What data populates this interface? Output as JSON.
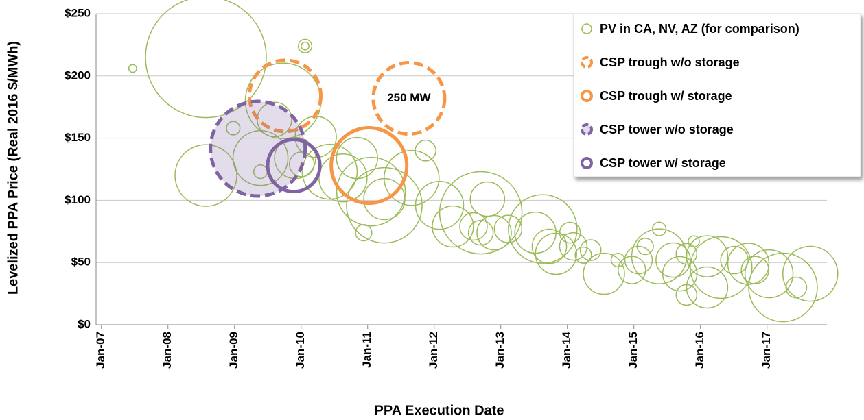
{
  "chart_data": {
    "type": "bubble",
    "xlabel": "PPA Execution Date",
    "ylabel": "Levelized PPA Price (Real 2016 $/MWh)",
    "xlim": [
      2006.92,
      2017.9
    ],
    "ylim": [
      0,
      250
    ],
    "xticks": [
      {
        "value": 2007,
        "label": "Jan-07"
      },
      {
        "value": 2008,
        "label": "Jan-08"
      },
      {
        "value": 2009,
        "label": "Jan-09"
      },
      {
        "value": 2010,
        "label": "Jan-10"
      },
      {
        "value": 2011,
        "label": "Jan-11"
      },
      {
        "value": 2012,
        "label": "Jan-12"
      },
      {
        "value": 2013,
        "label": "Jan-13"
      },
      {
        "value": 2014,
        "label": "Jan-14"
      },
      {
        "value": 2015,
        "label": "Jan-15"
      },
      {
        "value": 2016,
        "label": "Jan-16"
      },
      {
        "value": 2017,
        "label": "Jan-17"
      }
    ],
    "yticks": [
      {
        "value": 0,
        "label": "$0"
      },
      {
        "value": 50,
        "label": "$50"
      },
      {
        "value": 100,
        "label": "$100"
      },
      {
        "value": 150,
        "label": "$150"
      },
      {
        "value": 200,
        "label": "$200"
      },
      {
        "value": 250,
        "label": "$250"
      }
    ],
    "grid": true,
    "legend": "upper right",
    "series": [
      {
        "name": "PV in CA, NV, AZ (for comparison)",
        "color": "#9bbb59",
        "dashed": false,
        "fill": "none",
        "x": [
          2007.47,
          2008.57,
          2010.06,
          2010.06,
          2009.73,
          2008.57,
          2008.98,
          2009.39,
          2009.6,
          2009.39,
          2009.91,
          2010.01,
          2010.22,
          2010.43,
          2010.63,
          2010.84,
          2011.05,
          2011.25,
          2011.66,
          2011.87,
          2010.94,
          2011.25,
          2012.08,
          2012.28,
          2012.7,
          2012.8,
          2012.59,
          2012.9,
          2013.11,
          2013.52,
          2013.63,
          2014.04,
          2013.73,
          2013.83,
          2014.09,
          2014.24,
          2014.35,
          2014.76,
          2015.07,
          2015.38,
          2015.59,
          2015.17,
          2015.79,
          2016.1,
          2016.31,
          2016.51,
          2016.72,
          2016.82,
          2017.03,
          2017.24,
          2017.65,
          2017.44,
          2015.38,
          2015.9,
          2016.1,
          2015.69,
          2014.97,
          2014.55,
          2015.79,
          2012.7
        ],
        "values": [
          206,
          215,
          224,
          224,
          180,
          120,
          158,
          123,
          165,
          134,
          134,
          129,
          151,
          123,
          118,
          134,
          107,
          96,
          118,
          140,
          74,
          101,
          96,
          79,
          90,
          101,
          79,
          74,
          77,
          74,
          77,
          74,
          63,
          57,
          63,
          56,
          60,
          52,
          52,
          55,
          52,
          63,
          57,
          55,
          46,
          52,
          49,
          44,
          41,
          30,
          41,
          30,
          77,
          67,
          30,
          41,
          44,
          41,
          24,
          74
        ],
        "sizes": [
          3,
          716,
          9,
          3,
          280,
          187,
          9,
          9,
          58,
          148,
          83,
          30,
          83,
          148,
          113,
          83,
          231,
          280,
          148,
          21,
          13,
          83,
          113,
          83,
          333,
          58,
          37,
          58,
          37,
          83,
          231,
          21,
          58,
          83,
          37,
          13,
          21,
          9,
          37,
          148,
          58,
          13,
          21,
          83,
          187,
          37,
          83,
          37,
          113,
          231,
          148,
          21,
          9,
          6,
          83,
          58,
          37,
          83,
          21,
          30
        ]
      },
      {
        "name": "CSP trough w/o storage",
        "color": "#f79646",
        "dashed": true,
        "fill": "none",
        "x": [
          2009.76
        ],
        "values": [
          184
        ],
        "sizes": [
          250
        ]
      },
      {
        "name": "CSP trough w/ storage",
        "color": "#f79646",
        "dashed": false,
        "fill": "none",
        "x": [
          2011.02
        ],
        "values": [
          128
        ],
        "sizes": [
          280
        ]
      },
      {
        "name": "CSP tower w/o storage",
        "color": "#8064a2",
        "dashed": true,
        "fill": "rgba(128,100,162,0.22)",
        "x": [
          2009.35
        ],
        "values": [
          141.5
        ],
        "sizes": [
          440
        ]
      },
      {
        "name": "CSP tower w/ storage",
        "color": "#8064a2",
        "dashed": false,
        "fill": "none",
        "x": [
          2009.89
        ],
        "values": [
          128
        ],
        "sizes": [
          134
        ]
      }
    ],
    "size_reference": {
      "label": "250 MW",
      "x": 2011.62,
      "y": 182,
      "size": 250,
      "color": "#f79646"
    }
  }
}
